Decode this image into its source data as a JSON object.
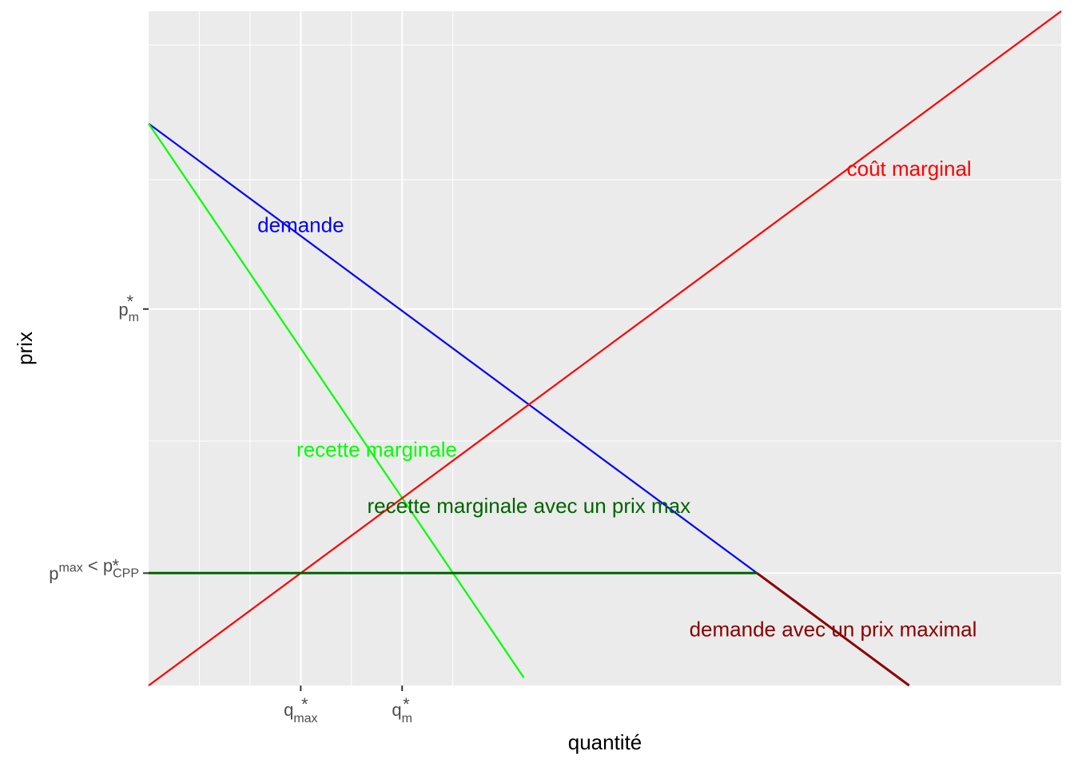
{
  "chart_data": {
    "type": "line",
    "xlabel": "quantité",
    "ylabel": "prix",
    "xlim": [
      0,
      9
    ],
    "ylim": [
      0,
      6
    ],
    "grid": true,
    "x_ticks": [
      {
        "x": 1.5,
        "base": "q",
        "sup": "*",
        "sub": "max"
      },
      {
        "x": 2.5,
        "base": "q",
        "sup": "*",
        "sub": "m"
      }
    ],
    "y_ticks": [
      {
        "y": 1.0,
        "parts": [
          {
            "t": "p",
            "sup": "max"
          },
          {
            "t": " < p",
            "sup": "*",
            "sub": "CPP"
          }
        ]
      },
      {
        "y": 3.35,
        "parts": [
          {
            "t": "p",
            "sup": "*",
            "sub": "m"
          }
        ]
      }
    ],
    "series": [
      {
        "key": "demand",
        "name": "demande",
        "color": "#0000ff",
        "points": [
          [
            0,
            5
          ],
          [
            6,
            1
          ]
        ]
      },
      {
        "key": "mr",
        "name": "recette marginale",
        "color": "#00ff00",
        "points": [
          [
            0,
            5
          ],
          [
            3.7,
            0.07
          ]
        ]
      },
      {
        "key": "mc",
        "name": "coût marginal",
        "color": "#ff0000",
        "points": [
          [
            0,
            0
          ],
          [
            9,
            6
          ]
        ]
      },
      {
        "key": "demand_max",
        "name": "demande avec un prix maximal",
        "color": "#8b0000",
        "points": [
          [
            6,
            1
          ],
          [
            7.5,
            0
          ]
        ]
      },
      {
        "key": "mr_max",
        "name": "recette marginale avec un prix max",
        "color": "#006400",
        "points": [
          [
            0,
            1
          ],
          [
            6,
            1
          ]
        ]
      }
    ],
    "annotations": [
      {
        "text": "demande",
        "x": 1.5,
        "y": 4.1,
        "color": "#0000ff"
      },
      {
        "text": "coût marginal",
        "x": 7.5,
        "y": 4.6,
        "color": "#ff0000"
      },
      {
        "text": "recette marginale",
        "x": 2.25,
        "y": 2.1,
        "color": "#00ff00"
      },
      {
        "text": "recette marginale avec un prix max",
        "x": 3.75,
        "y": 1.6,
        "color": "#006400"
      },
      {
        "text": "demande avec un prix maximal",
        "x": 6.75,
        "y": 0.5,
        "color": "#8b0000"
      }
    ]
  }
}
